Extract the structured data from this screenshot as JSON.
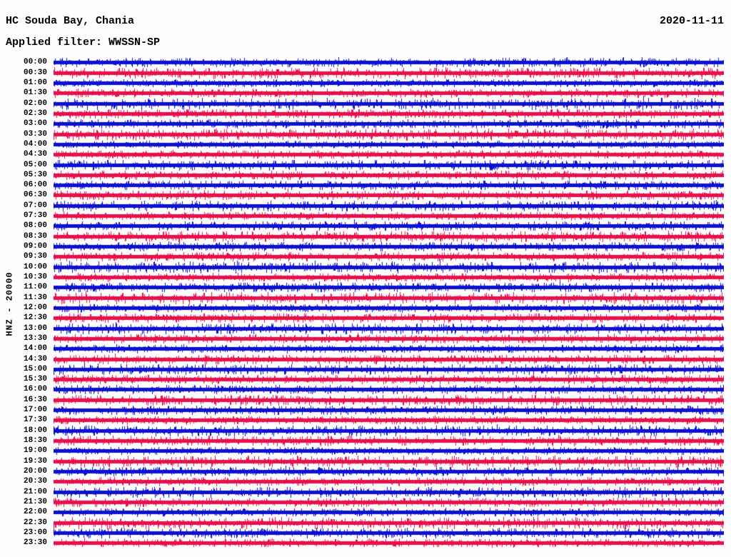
{
  "page": {
    "background": "#fdfdfd"
  },
  "header": {
    "station": "HC Souda Bay, Chania",
    "date": "2020-11-11",
    "filter": "Applied filter: WWSSN-SP"
  },
  "chart_data": {
    "type": "line",
    "subtype": "helicorder-dayplot",
    "title": "HC Souda Bay, Chania",
    "date": "2020-11-11",
    "applied_filter": "WWSSN-SP",
    "y_axis_label": "HNZ - 20000",
    "channel": "HNZ",
    "scale": 20000,
    "row_interval_minutes": 30,
    "rows_count": 48,
    "time_range": [
      "00:00",
      "23:30"
    ],
    "xlabel": "",
    "ylabel": "HNZ - 20000",
    "grid": false,
    "legend_position": "none",
    "trace_colors": {
      "blue": "#0b10d2",
      "red": "#ea0f4b"
    },
    "description": "Continuous background seismic noise; 48 alternating blue/red half-hour traces, no distinct events visible",
    "rows": [
      {
        "label": "00:00",
        "color": "blue",
        "amp": 1.0
      },
      {
        "label": "00:30",
        "color": "red",
        "amp": 1.3
      },
      {
        "label": "01:00",
        "color": "blue",
        "amp": 0.7
      },
      {
        "label": "01:30",
        "color": "red",
        "amp": 0.9
      },
      {
        "label": "02:00",
        "color": "blue",
        "amp": 1.3
      },
      {
        "label": "02:30",
        "color": "red",
        "amp": 1.0
      },
      {
        "label": "03:00",
        "color": "blue",
        "amp": 0.9
      },
      {
        "label": "03:30",
        "color": "red",
        "amp": 1.3
      },
      {
        "label": "04:00",
        "color": "blue",
        "amp": 0.7
      },
      {
        "label": "04:30",
        "color": "red",
        "amp": 0.8
      },
      {
        "label": "05:00",
        "color": "blue",
        "amp": 1.2
      },
      {
        "label": "05:30",
        "color": "red",
        "amp": 0.9
      },
      {
        "label": "06:00",
        "color": "blue",
        "amp": 1.0
      },
      {
        "label": "06:30",
        "color": "red",
        "amp": 1.0
      },
      {
        "label": "07:00",
        "color": "blue",
        "amp": 1.2
      },
      {
        "label": "07:30",
        "color": "red",
        "amp": 0.8
      },
      {
        "label": "08:00",
        "color": "blue",
        "amp": 1.0
      },
      {
        "label": "08:30",
        "color": "red",
        "amp": 1.2
      },
      {
        "label": "09:00",
        "color": "blue",
        "amp": 1.0
      },
      {
        "label": "09:30",
        "color": "red",
        "amp": 0.9
      },
      {
        "label": "10:00",
        "color": "blue",
        "amp": 1.3
      },
      {
        "label": "10:30",
        "color": "red",
        "amp": 0.8
      },
      {
        "label": "11:00",
        "color": "blue",
        "amp": 1.0
      },
      {
        "label": "11:30",
        "color": "red",
        "amp": 1.3
      },
      {
        "label": "12:00",
        "color": "blue",
        "amp": 0.8
      },
      {
        "label": "12:30",
        "color": "red",
        "amp": 1.0
      },
      {
        "label": "13:00",
        "color": "blue",
        "amp": 1.2
      },
      {
        "label": "13:30",
        "color": "red",
        "amp": 0.9
      },
      {
        "label": "14:00",
        "color": "blue",
        "amp": 0.8
      },
      {
        "label": "14:30",
        "color": "red",
        "amp": 1.0
      },
      {
        "label": "15:00",
        "color": "blue",
        "amp": 1.2
      },
      {
        "label": "15:30",
        "color": "red",
        "amp": 1.0
      },
      {
        "label": "16:00",
        "color": "blue",
        "amp": 0.9
      },
      {
        "label": "16:30",
        "color": "red",
        "amp": 1.2
      },
      {
        "label": "17:00",
        "color": "blue",
        "amp": 1.0
      },
      {
        "label": "17:30",
        "color": "red",
        "amp": 0.8
      },
      {
        "label": "18:00",
        "color": "blue",
        "amp": 1.2
      },
      {
        "label": "18:30",
        "color": "red",
        "amp": 1.1
      },
      {
        "label": "19:00",
        "color": "blue",
        "amp": 0.7
      },
      {
        "label": "19:30",
        "color": "red",
        "amp": 1.3
      },
      {
        "label": "20:00",
        "color": "blue",
        "amp": 1.0
      },
      {
        "label": "20:30",
        "color": "red",
        "amp": 0.9
      },
      {
        "label": "21:00",
        "color": "blue",
        "amp": 1.2
      },
      {
        "label": "21:30",
        "color": "red",
        "amp": 1.0
      },
      {
        "label": "22:00",
        "color": "blue",
        "amp": 0.8
      },
      {
        "label": "22:30",
        "color": "red",
        "amp": 1.3
      },
      {
        "label": "23:00",
        "color": "blue",
        "amp": 1.1
      },
      {
        "label": "23:30",
        "color": "red",
        "amp": 0.8
      }
    ]
  }
}
